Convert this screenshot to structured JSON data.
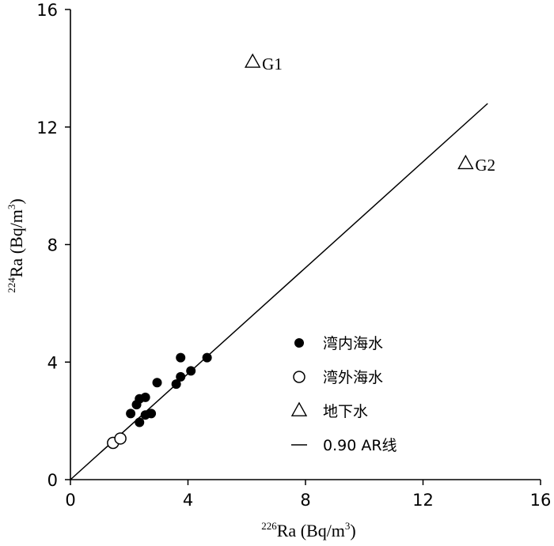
{
  "chart_data": {
    "type": "scatter",
    "xlabel": {
      "superscript": "226",
      "text": "Ra (Bq/m",
      "unit_sup": "3",
      "close": ")"
    },
    "ylabel": {
      "superscript": "224",
      "text": "Ra (Bq/m",
      "unit_sup": "3",
      "close": ")"
    },
    "xlim": [
      0,
      16
    ],
    "ylim": [
      0,
      16
    ],
    "x_ticks": [
      0,
      4,
      8,
      12,
      16
    ],
    "y_ticks": [
      0,
      4,
      8,
      12,
      16
    ],
    "x_tick_labels": [
      "0",
      "4",
      "8",
      "12",
      "16"
    ],
    "y_tick_labels": [
      "0",
      "4",
      "8",
      "12",
      "16"
    ],
    "grid": false,
    "legend_position": "bottom-right",
    "series": [
      {
        "name": "湾内海水",
        "marker": "filled-circle",
        "points": [
          {
            "x": 2.05,
            "y": 2.25
          },
          {
            "x": 2.25,
            "y": 2.55
          },
          {
            "x": 2.35,
            "y": 2.75
          },
          {
            "x": 2.35,
            "y": 1.95
          },
          {
            "x": 2.55,
            "y": 2.2
          },
          {
            "x": 2.55,
            "y": 2.8
          },
          {
            "x": 2.75,
            "y": 2.25
          },
          {
            "x": 2.95,
            "y": 3.3
          },
          {
            "x": 3.6,
            "y": 3.25
          },
          {
            "x": 3.75,
            "y": 3.5
          },
          {
            "x": 3.75,
            "y": 4.15
          },
          {
            "x": 4.1,
            "y": 3.7
          },
          {
            "x": 4.65,
            "y": 4.15
          }
        ]
      },
      {
        "name": "湾外海水",
        "marker": "open-circle",
        "points": [
          {
            "x": 1.45,
            "y": 1.25
          },
          {
            "x": 1.7,
            "y": 1.4
          }
        ]
      },
      {
        "name": "地下水",
        "marker": "open-triangle",
        "points": [
          {
            "x": 6.2,
            "y": 14.2,
            "label": "G1"
          },
          {
            "x": 13.45,
            "y": 10.75,
            "label": "G2"
          }
        ]
      }
    ],
    "reference_line": {
      "name": "0.90 AR线",
      "x": [
        0,
        14.2
      ],
      "y": [
        0,
        12.8
      ]
    },
    "legend": [
      {
        "marker": "filled-circle",
        "label": "湾内海水"
      },
      {
        "marker": "open-circle",
        "label": "湾外海水"
      },
      {
        "marker": "open-triangle",
        "label": "地下水"
      },
      {
        "marker": "line",
        "label": "0.90 AR线"
      }
    ]
  }
}
